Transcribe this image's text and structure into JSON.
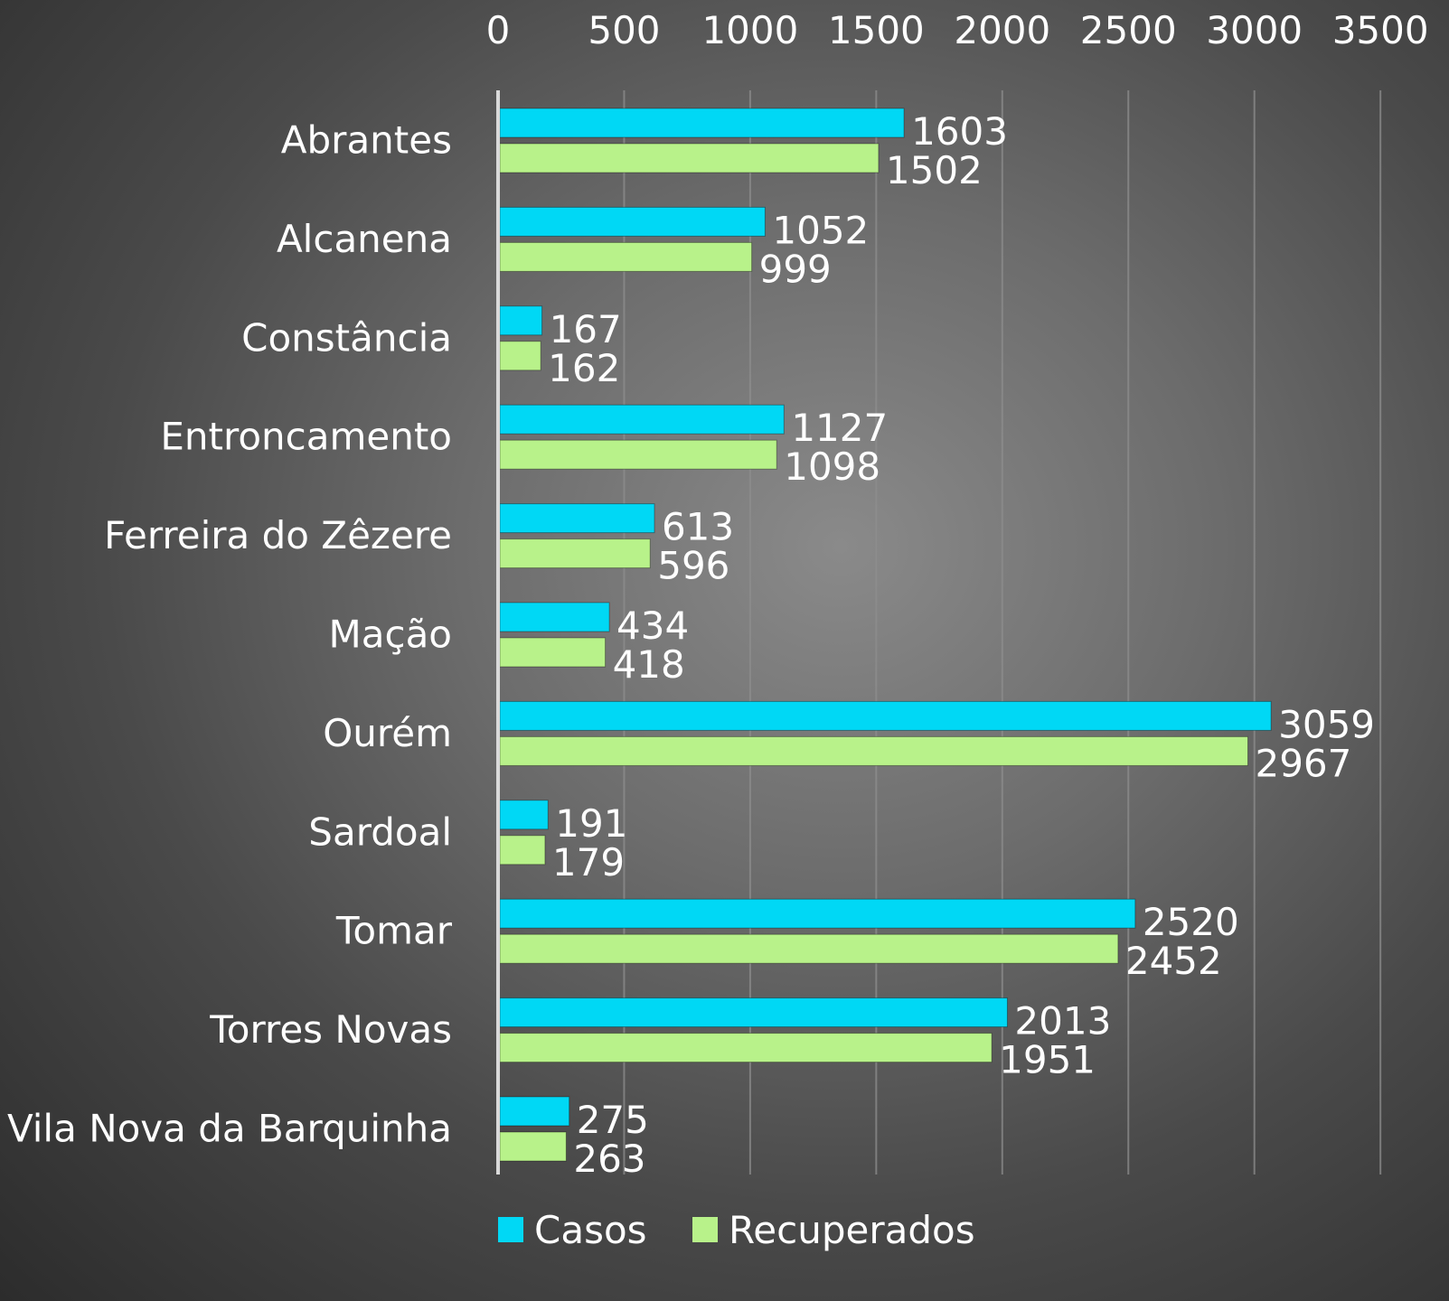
{
  "chart_data": {
    "type": "bar",
    "orientation": "horizontal",
    "title": "",
    "xlabel": "",
    "ylabel": "",
    "xlim": [
      0,
      3500
    ],
    "x_ticks": [
      0,
      500,
      1000,
      1500,
      2000,
      2500,
      3000,
      3500
    ],
    "x_axis_position": "top",
    "grid": true,
    "legend_position": "bottom",
    "categories": [
      "Abrantes",
      "Alcanena",
      "Constância",
      "Entroncamento",
      "Ferreira do Zêzere",
      "Mação",
      "Ourém",
      "Sardoal",
      "Tomar",
      "Torres Novas",
      "Vila Nova da Barquinha"
    ],
    "series": [
      {
        "name": "Casos",
        "color": "#00d8f5",
        "values": [
          1603,
          1052,
          167,
          1127,
          613,
          434,
          3059,
          191,
          2520,
          2013,
          275
        ]
      },
      {
        "name": "Recuperados",
        "color": "#b8f28a",
        "values": [
          1502,
          999,
          162,
          1098,
          596,
          418,
          2967,
          179,
          2452,
          1951,
          263
        ]
      }
    ]
  }
}
